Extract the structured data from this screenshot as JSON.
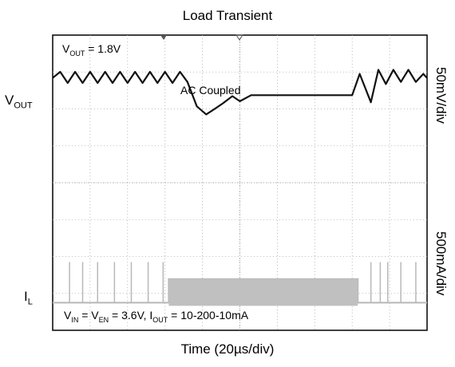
{
  "chart_data": {
    "type": "line",
    "title": "Load Transient",
    "xlabel": "Time (20µs/div)",
    "ylabels_right": [
      "50mV/div",
      "500mA/div"
    ],
    "grid": "on",
    "divisions": {
      "x": 10,
      "y": 8
    },
    "annotations": {
      "vout_box": "= 1.8V",
      "vout_box_prefix": "V",
      "vout_box_sub": "OUT",
      "coupling": "AC Coupled",
      "conditions": {
        "v": "V",
        "in": "IN",
        "eq1": " = V",
        "en": "EN",
        "eq2": " = 3.6V, I",
        "out": "OUT",
        "tail": " = 10-200-10mA"
      }
    },
    "channel_labels": {
      "vout_main": "V",
      "vout_sub": "OUT",
      "il_main": "I",
      "il_sub": "L"
    },
    "series": [
      {
        "channel": "vout",
        "x_div": [
          0,
          0.2,
          0.4,
          0.6,
          0.8,
          1.0,
          1.2,
          1.4,
          1.6,
          1.8,
          2.0,
          2.2,
          2.4,
          2.6,
          2.8,
          3.0,
          3.2,
          3.4,
          3.6,
          3.85,
          4.1,
          4.35,
          4.55,
          4.8,
          5.0,
          5.3,
          5.6,
          6.0,
          7.0,
          8.0,
          8.2,
          8.5,
          8.7,
          8.9,
          9.1,
          9.3,
          9.5,
          9.7,
          9.9,
          10.0
        ],
        "y_div": [
          0.8,
          1.1,
          0.55,
          1.1,
          0.55,
          1.1,
          0.55,
          1.1,
          0.55,
          1.1,
          0.55,
          1.1,
          0.55,
          1.1,
          0.55,
          1.1,
          0.55,
          1.1,
          0.6,
          -0.6,
          -1.0,
          -0.7,
          -0.45,
          -0.1,
          -0.35,
          -0.05,
          -0.05,
          -0.05,
          -0.05,
          -0.05,
          1.0,
          -0.4,
          1.2,
          0.5,
          1.2,
          0.6,
          1.2,
          0.6,
          1.0,
          0.8
        ]
      },
      {
        "channel": "il",
        "x_div": [
          0,
          3.05,
          3.1,
          8.15,
          8.2,
          10
        ],
        "i_mA": [
          10,
          10,
          200,
          200,
          10,
          10
        ]
      }
    ]
  }
}
